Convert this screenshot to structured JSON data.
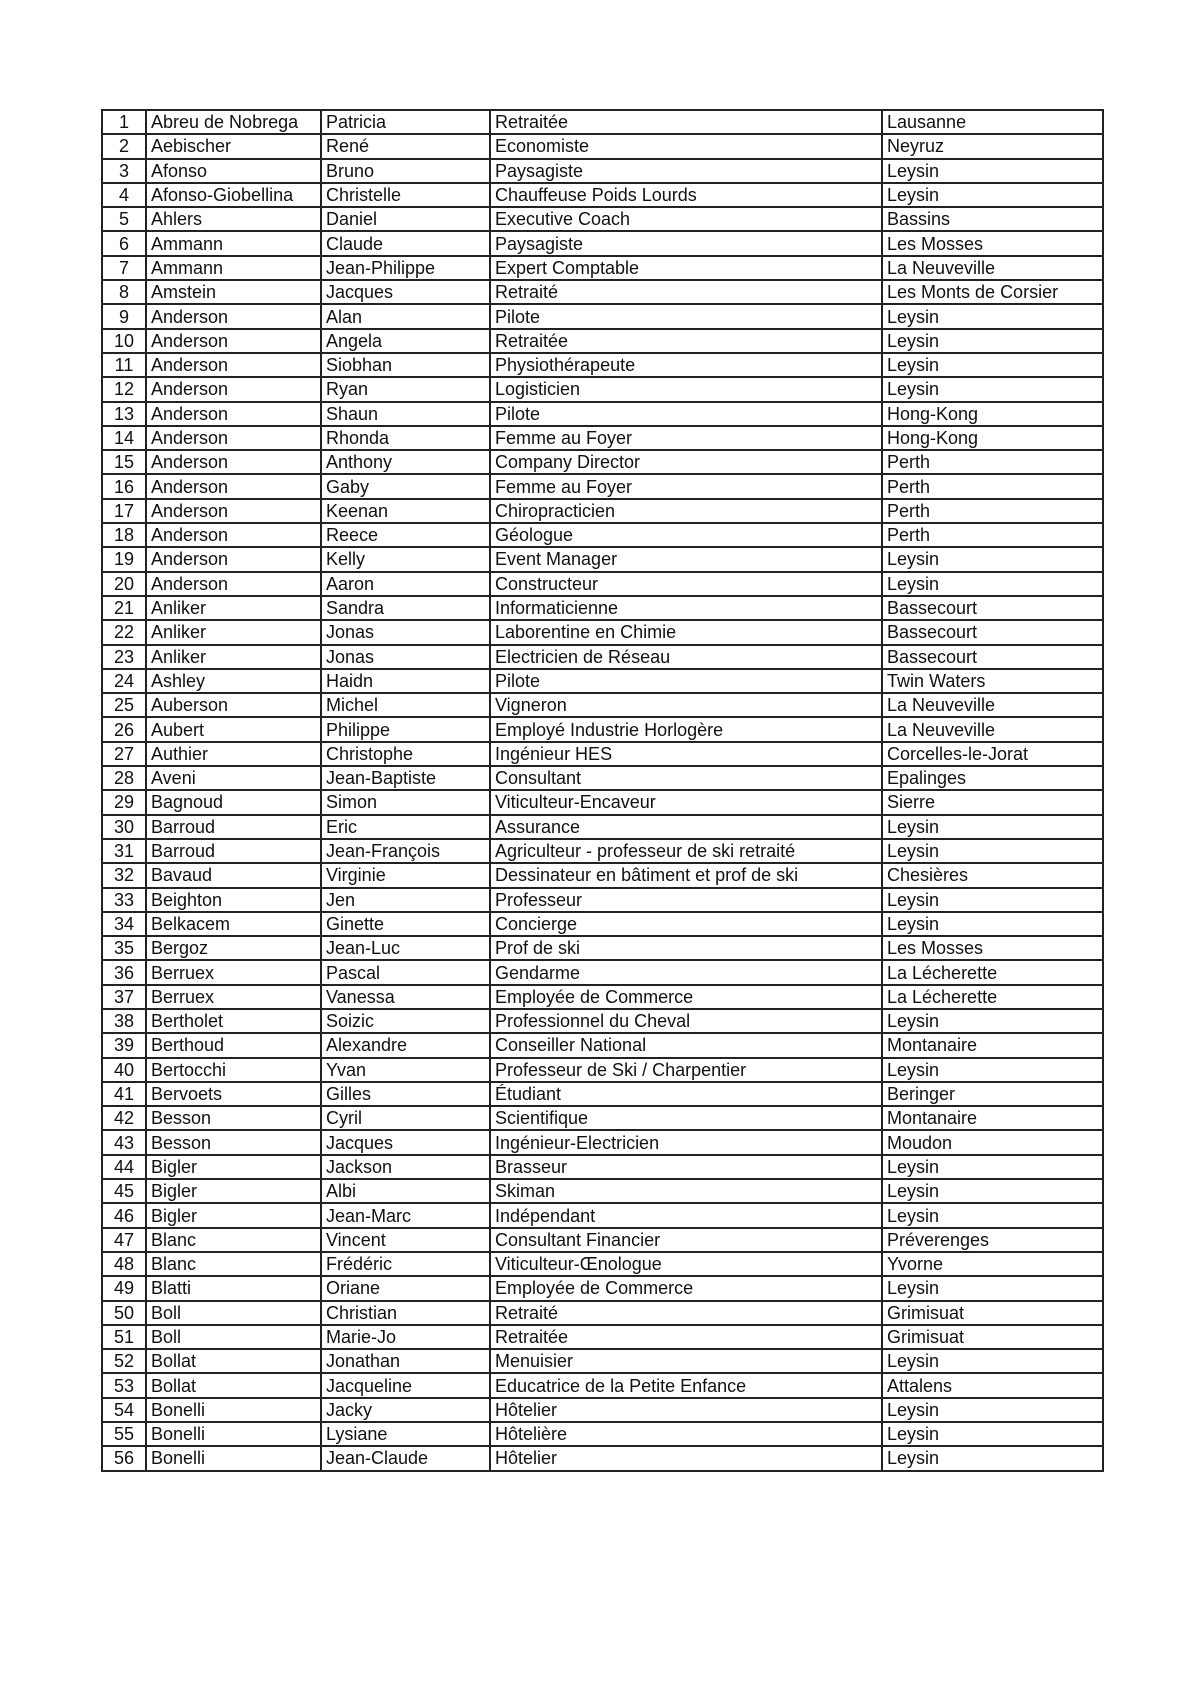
{
  "rows": [
    [
      "1",
      "Abreu de Nobrega",
      "Patricia",
      "Retraitée",
      "Lausanne"
    ],
    [
      "2",
      "Aebischer",
      "René",
      "Economiste",
      "Neyruz"
    ],
    [
      "3",
      "Afonso",
      "Bruno",
      "Paysagiste",
      "Leysin"
    ],
    [
      "4",
      "Afonso-Giobellina",
      "Christelle",
      "Chauffeuse Poids Lourds",
      "Leysin"
    ],
    [
      "5",
      "Ahlers",
      "Daniel",
      "Executive Coach",
      "Bassins"
    ],
    [
      "6",
      "Ammann",
      "Claude",
      "Paysagiste",
      "Les Mosses"
    ],
    [
      "7",
      "Ammann",
      "Jean-Philippe",
      "Expert Comptable",
      "La Neuveville"
    ],
    [
      "8",
      "Amstein",
      "Jacques",
      "Retraité",
      "Les Monts de Corsier"
    ],
    [
      "9",
      "Anderson",
      "Alan",
      "Pilote",
      "Leysin"
    ],
    [
      "10",
      "Anderson",
      "Angela",
      "Retraitée",
      "Leysin"
    ],
    [
      "11",
      "Anderson",
      "Siobhan",
      "Physiothérapeute",
      "Leysin"
    ],
    [
      "12",
      "Anderson",
      "Ryan",
      "Logisticien",
      "Leysin"
    ],
    [
      "13",
      "Anderson",
      "Shaun",
      "Pilote",
      "Hong-Kong"
    ],
    [
      "14",
      "Anderson",
      "Rhonda",
      "Femme au Foyer",
      "Hong-Kong"
    ],
    [
      "15",
      "Anderson",
      "Anthony",
      "Company Director",
      "Perth"
    ],
    [
      "16",
      "Anderson",
      "Gaby",
      "Femme au Foyer",
      "Perth"
    ],
    [
      "17",
      "Anderson",
      "Keenan",
      "Chiropracticien",
      "Perth"
    ],
    [
      "18",
      "Anderson",
      "Reece",
      "Géologue",
      "Perth"
    ],
    [
      "19",
      "Anderson",
      "Kelly",
      "Event Manager",
      "Leysin"
    ],
    [
      "20",
      "Anderson",
      "Aaron",
      "Constructeur",
      "Leysin"
    ],
    [
      "21",
      "Anliker",
      "Sandra",
      "Informaticienne",
      "Bassecourt"
    ],
    [
      "22",
      "Anliker",
      "Jonas",
      "Laborentine en Chimie",
      "Bassecourt"
    ],
    [
      "23",
      "Anliker",
      "Jonas",
      "Electricien de Réseau",
      "Bassecourt"
    ],
    [
      "24",
      "Ashley",
      "Haidn",
      "Pilote",
      "Twin Waters"
    ],
    [
      "25",
      "Auberson",
      "Michel",
      "Vigneron",
      "La Neuveville"
    ],
    [
      "26",
      "Aubert",
      "Philippe",
      "Employé Industrie Horlogère",
      "La Neuveville"
    ],
    [
      "27",
      "Authier",
      "Christophe",
      "Ingénieur HES",
      "Corcelles-le-Jorat"
    ],
    [
      "28",
      "Aveni",
      "Jean-Baptiste",
      "Consultant",
      "Epalinges"
    ],
    [
      "29",
      "Bagnoud",
      "Simon",
      "Viticulteur-Encaveur",
      "Sierre"
    ],
    [
      "30",
      "Barroud",
      "Eric",
      "Assurance",
      "Leysin"
    ],
    [
      "31",
      "Barroud",
      "Jean-François",
      "Agriculteur - professeur de ski retraité",
      "Leysin"
    ],
    [
      "32",
      "Bavaud",
      "Virginie",
      "Dessinateur en bâtiment et prof de ski",
      "Chesières"
    ],
    [
      "33",
      "Beighton",
      "Jen",
      "Professeur",
      "Leysin"
    ],
    [
      "34",
      "Belkacem",
      "Ginette",
      "Concierge",
      "Leysin"
    ],
    [
      "35",
      "Bergoz",
      "Jean-Luc",
      "Prof de ski",
      "Les Mosses"
    ],
    [
      "36",
      "Berruex",
      "Pascal",
      "Gendarme",
      "La Lécherette"
    ],
    [
      "37",
      "Berruex",
      "Vanessa",
      "Employée de Commerce",
      "La Lécherette"
    ],
    [
      "38",
      "Bertholet",
      "Soizic",
      "Professionnel du Cheval",
      "Leysin"
    ],
    [
      "39",
      "Berthoud",
      "Alexandre",
      "Conseiller National",
      "Montanaire"
    ],
    [
      "40",
      "Bertocchi",
      "Yvan",
      "Professeur de Ski / Charpentier",
      "Leysin"
    ],
    [
      "41",
      "Bervoets",
      "Gilles",
      "Étudiant",
      "Beringer"
    ],
    [
      "42",
      "Besson",
      "Cyril",
      "Scientifique",
      "Montanaire"
    ],
    [
      "43",
      "Besson",
      "Jacques",
      "Ingénieur-Electricien",
      "Moudon"
    ],
    [
      "44",
      "Bigler",
      "Jackson",
      "Brasseur",
      "Leysin"
    ],
    [
      "45",
      "Bigler",
      "Albi",
      "Skiman",
      "Leysin"
    ],
    [
      "46",
      "Bigler",
      "Jean-Marc",
      "Indépendant",
      "Leysin"
    ],
    [
      "47",
      "Blanc",
      "Vincent",
      "Consultant Financier",
      "Préverenges"
    ],
    [
      "48",
      "Blanc",
      "Frédéric",
      "Viticulteur-Œnologue",
      "Yvorne"
    ],
    [
      "49",
      "Blatti",
      "Oriane",
      "Employée de Commerce",
      "Leysin"
    ],
    [
      "50",
      "Boll",
      "Christian",
      "Retraité",
      "Grimisuat"
    ],
    [
      "51",
      "Boll",
      "Marie-Jo",
      "Retraitée",
      "Grimisuat"
    ],
    [
      "52",
      "Bollat",
      "Jonathan",
      "Menuisier",
      "Leysin"
    ],
    [
      "53",
      "Bollat",
      "Jacqueline",
      "Educatrice de la Petite Enfance",
      "Attalens"
    ],
    [
      "54",
      "Bonelli",
      "Jacky",
      "Hôtelier",
      "Leysin"
    ],
    [
      "55",
      "Bonelli",
      "Lysiane",
      "Hôtelière",
      "Leysin"
    ],
    [
      "56",
      "Bonelli",
      "Jean-Claude",
      "Hôtelier",
      "Leysin"
    ]
  ]
}
